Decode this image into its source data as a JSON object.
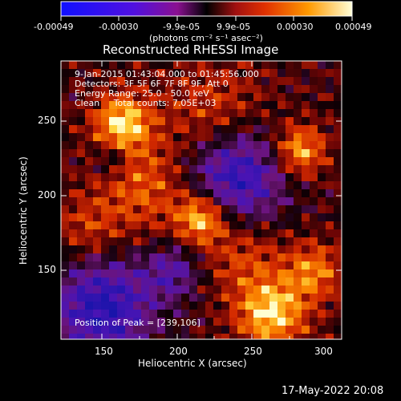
{
  "colorbar": {
    "ticks": [
      "-0.00049",
      "-0.00030",
      "-9.9e-05",
      "9.9e-05",
      "0.00030",
      "0.00049"
    ],
    "units": "(photons cm⁻² s⁻¹ asec⁻²)"
  },
  "image": {
    "title": "Reconstructed RHESSI Image",
    "annotations": {
      "time_range": "9-Jan-2015 01:43:04.000 to 01:45:56.000",
      "detectors": "Detectors: 3F 5F 6F 7F 8F 9F, Att 0",
      "energy_range": "Energy Range: 25.0 - 50.0 keV",
      "clean_counts": "Clean     Total counts: 7.05E+03",
      "peak_position": "Position of Peak = [239,106]"
    },
    "x_axis": {
      "label": "Heliocentric X (arcsec)",
      "ticks": [
        "150",
        "200",
        "250",
        "300"
      ]
    },
    "y_axis": {
      "label": "Heliocentric Y (arcsec)",
      "ticks": [
        "150",
        "200",
        "250"
      ]
    }
  },
  "footer": {
    "timestamp": "17-May-2022 20:08"
  }
}
